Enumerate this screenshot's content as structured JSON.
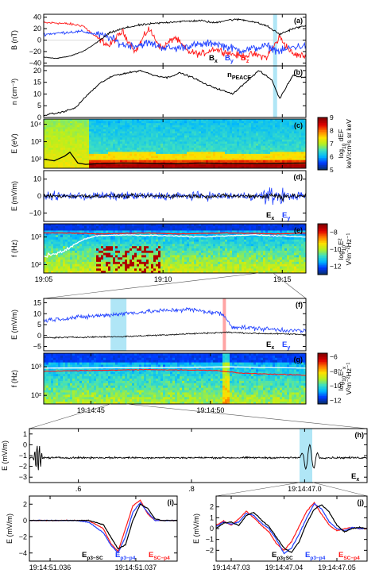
{
  "colors": {
    "black": "#000000",
    "blue": "#1f3fff",
    "red": "#ff1a1a",
    "white": "#ffffff",
    "highlight_cyan": "#8fdcf2",
    "highlight_red": "#ff9a9a",
    "colormap": [
      "#08306b",
      "#0038ff",
      "#00b7ff",
      "#3fe0c0",
      "#b6f020",
      "#ffe000",
      "#ff7a00",
      "#e00000",
      "#8a0000"
    ]
  },
  "chart_data": [
    {
      "id": "a",
      "type": "line",
      "panel_label": "(a)",
      "ylabel": "B (nT)",
      "ylim": [
        -45,
        45
      ],
      "yticks": [
        "40",
        "20",
        "0",
        "−20",
        "−40"
      ],
      "ytick_values": [
        40,
        20,
        0,
        -20,
        -40
      ],
      "xlim": [
        "19:05",
        "19:16"
      ],
      "highlight": [
        "19:14:45",
        "19:14:47"
      ],
      "series": [
        {
          "name": "Bx",
          "label_main": "B",
          "label_sub": "x",
          "color": "#000000",
          "x": [
            0,
            0.05,
            0.1,
            0.15,
            0.2,
            0.25,
            0.3,
            0.35,
            0.4,
            0.45,
            0.5,
            0.55,
            0.6,
            0.65,
            0.7,
            0.75,
            0.8,
            0.85,
            0.9,
            0.95,
            1
          ],
          "y": [
            -30,
            -32,
            -28,
            -20,
            -5,
            12,
            20,
            25,
            28,
            30,
            32,
            33,
            34,
            30,
            35,
            36,
            32,
            25,
            10,
            20,
            25
          ]
        },
        {
          "name": "By",
          "label_main": "B",
          "label_sub": "y",
          "color": "#1f3fff",
          "x": [
            0,
            0.05,
            0.1,
            0.15,
            0.2,
            0.25,
            0.3,
            0.35,
            0.4,
            0.45,
            0.5,
            0.55,
            0.6,
            0.65,
            0.7,
            0.75,
            0.8,
            0.85,
            0.9,
            0.95,
            1
          ],
          "y": [
            10,
            12,
            14,
            15,
            10,
            5,
            -8,
            -10,
            -5,
            -12,
            -15,
            -10,
            -8,
            -5,
            -12,
            -18,
            -15,
            -10,
            -20,
            -12,
            -10
          ]
        },
        {
          "name": "Bz",
          "label_main": "B",
          "label_sub": "z",
          "color": "#ff1a1a",
          "x": [
            0,
            0.05,
            0.1,
            0.15,
            0.2,
            0.25,
            0.3,
            0.35,
            0.4,
            0.45,
            0.5,
            0.55,
            0.6,
            0.65,
            0.7,
            0.75,
            0.8,
            0.85,
            0.9,
            0.95,
            1
          ],
          "y": [
            30,
            30,
            28,
            25,
            5,
            -10,
            15,
            -20,
            20,
            -15,
            5,
            -20,
            -25,
            -15,
            -22,
            -28,
            -25,
            -30,
            5,
            -25,
            -28
          ]
        }
      ]
    },
    {
      "id": "b",
      "type": "line",
      "panel_label": "(b)",
      "ylabel": "n (cm⁻³)",
      "ylim": [
        0,
        22
      ],
      "yticks": [
        "20",
        "15",
        "10",
        "5",
        "0"
      ],
      "ytick_values": [
        20,
        15,
        10,
        5,
        0
      ],
      "xlim": [
        "19:05",
        "19:16"
      ],
      "highlight": [
        "19:14:45",
        "19:14:47"
      ],
      "annotation_main": "n",
      "annotation_sub": "PEACE",
      "series": [
        {
          "name": "nPEACE",
          "color": "#000000",
          "x": [
            0,
            0.06,
            0.12,
            0.17,
            0.22,
            0.27,
            0.32,
            0.37,
            0.42,
            0.47,
            0.52,
            0.57,
            0.62,
            0.67,
            0.72,
            0.77,
            0.82,
            0.87,
            0.9,
            0.95,
            1
          ],
          "y": [
            1,
            2,
            4,
            10,
            15,
            18,
            19,
            20,
            18,
            17,
            19,
            17,
            14,
            12,
            10,
            15,
            20,
            16,
            8,
            18,
            17
          ]
        }
      ]
    },
    {
      "id": "c",
      "type": "heatmap",
      "panel_label": "(c)",
      "ylabel": "E (eV)",
      "yscale": "log",
      "ylim": [
        30,
        20000
      ],
      "yticks": [
        "10⁴",
        "10³",
        "10²"
      ],
      "xlim": [
        "19:05",
        "19:16"
      ],
      "colorbar": {
        "label_main": "log",
        "label_sub": "10",
        "label_rest": " dEF",
        "units": "keV/cm²s sr keV",
        "ticks": [
          "9",
          "8",
          "7",
          "6",
          "5"
        ],
        "range": [
          5,
          9
        ]
      },
      "overlay_line": {
        "color": "#000000",
        "x": [
          0,
          0.04,
          0.08,
          0.1,
          0.13,
          0.16,
          0.2,
          0.3,
          0.4,
          0.5,
          0.6,
          0.7,
          0.8,
          0.9,
          1
        ],
        "y": [
          100,
          80,
          150,
          250,
          60,
          50,
          55,
          60,
          58,
          55,
          60,
          57,
          56,
          58,
          60
        ]
      }
    },
    {
      "id": "d",
      "type": "line",
      "panel_label": "(d)",
      "ylabel": "E (mV/m)",
      "ylim": [
        -15,
        15
      ],
      "yticks": [
        "10",
        "0",
        "−10"
      ],
      "ytick_values": [
        10,
        0,
        -10
      ],
      "xlim": [
        "19:05",
        "19:16"
      ],
      "series": [
        {
          "name": "Ex",
          "label_main": "E",
          "label_sub": "x",
          "color": "#000000"
        },
        {
          "name": "Ey",
          "label_main": "E",
          "label_sub": "y",
          "color": "#1f3fff"
        }
      ]
    },
    {
      "id": "e",
      "type": "heatmap",
      "panel_label": "(e)",
      "ylabel": "f (Hz)",
      "yscale": "log",
      "ylim": [
        50,
        3000
      ],
      "yticks": [
        "10³",
        "10²"
      ],
      "xlim": [
        "19:05",
        "19:16"
      ],
      "xticks": [
        "19:05",
        "19:10",
        "19:15"
      ],
      "colorbar": {
        "label_main": "log",
        "label_sub": "10",
        "label_rest": "E²",
        "units": "V²m⁻²Hz⁻¹",
        "ticks": [
          "−8",
          "−10",
          "−12"
        ],
        "range": [
          -13,
          -7
        ]
      },
      "overlay_lines": [
        {
          "color": "#ff1a1a",
          "x": [
            0,
            0.1,
            0.2,
            0.3,
            0.4,
            0.5,
            0.6,
            0.7,
            0.8,
            0.9,
            1
          ],
          "y": [
            1400,
            1400,
            1300,
            1350,
            1400,
            1300,
            1350,
            1400,
            1350,
            1300,
            1400
          ]
        },
        {
          "color": "#ffffff",
          "x": [
            0,
            0.05,
            0.1,
            0.15,
            0.2,
            0.3,
            0.4,
            0.5,
            0.6,
            0.7,
            0.8,
            0.9,
            1
          ],
          "y": [
            200,
            250,
            400,
            800,
            1100,
            1200,
            1150,
            1100,
            1000,
            1100,
            1200,
            1100,
            1000
          ]
        }
      ]
    },
    {
      "id": "f",
      "type": "line",
      "panel_label": "(f)",
      "ylabel": "E (mV/m)",
      "ylim": [
        -7,
        17
      ],
      "yticks": [
        "15",
        "10",
        "5",
        "0",
        "−5"
      ],
      "ytick_values": [
        15,
        10,
        5,
        0,
        -5
      ],
      "xlim": [
        "19:14:43",
        "19:14:54"
      ],
      "highlight_cyan": [
        "19:14:46.5",
        "19:14:47.1"
      ],
      "highlight_red": [
        "19:14:51.0",
        "19:14:51.1"
      ],
      "series": [
        {
          "name": "Ex",
          "label_main": "E",
          "label_sub": "x",
          "color": "#000000"
        },
        {
          "name": "Ey",
          "label_main": "E",
          "label_sub": "y",
          "color": "#1f3fff"
        }
      ]
    },
    {
      "id": "g",
      "type": "heatmap",
      "panel_label": "(g)",
      "ylabel": "f (Hz)",
      "yscale": "log",
      "ylim": [
        50,
        3000
      ],
      "yticks": [
        "10³",
        "10²"
      ],
      "xlim": [
        "19:14:43",
        "19:14:54"
      ],
      "xticks": [
        "19:14:45",
        "19:14:50"
      ],
      "colorbar": {
        "label_main": "log",
        "label_sub": "10",
        "label_rest": "E²",
        "label_x": "x",
        "units": "V²m⁻²Hz⁻¹",
        "ticks": [
          "−6",
          "−8",
          "−10",
          "−12"
        ],
        "range": [
          -12.5,
          -5.5
        ]
      }
    },
    {
      "id": "h",
      "type": "line",
      "panel_label": "(h)",
      "ylabel": "E (mV/m)",
      "ylim": [
        -3.5,
        1.5
      ],
      "yticks": [
        "1",
        "0",
        "−1",
        "−2",
        "−3"
      ],
      "ytick_values": [
        1,
        0,
        -1,
        -2,
        -3
      ],
      "xlim": [
        "19:14:46.5",
        "19:14:47.1"
      ],
      "xticks": [
        ".6",
        ".8",
        "19:14:47.0"
      ],
      "highlight": [
        "19:14:47.02",
        "19:14:47.06"
      ],
      "series": [
        {
          "name": "Ex",
          "label_main": "E",
          "label_sub": "x",
          "color": "#000000"
        }
      ]
    },
    {
      "id": "i",
      "type": "line",
      "panel_label": "(i)",
      "ylabel": "E (mV/m)",
      "ylim": [
        -5,
        3
      ],
      "yticks": [
        "2",
        "0",
        "−2",
        "−4"
      ],
      "ytick_values": [
        2,
        0,
        -2,
        -4
      ],
      "xticks": [
        "19:14:51.036",
        "19:14:51.037"
      ],
      "series": [
        {
          "name": "Ep3-SC",
          "label_main": "E",
          "label_sub": "p3−SC",
          "color": "#000000",
          "x": [
            0,
            0.1,
            0.2,
            0.3,
            0.4,
            0.5,
            0.55,
            0.6,
            0.65,
            0.7,
            0.75,
            0.8,
            0.85,
            0.9,
            1
          ],
          "y": [
            0,
            0,
            0,
            0,
            0,
            -0.5,
            -2,
            -3.5,
            -3,
            0,
            2,
            1.5,
            0.2,
            0,
            0
          ]
        },
        {
          "name": "Ep3-p4",
          "label_main": "E",
          "label_sub": "p3−p4",
          "color": "#1f3fff",
          "x": [
            0,
            0.1,
            0.2,
            0.3,
            0.4,
            0.5,
            0.55,
            0.6,
            0.65,
            0.7,
            0.75,
            0.8,
            0.85,
            0.9,
            1
          ],
          "y": [
            0,
            0,
            0,
            0,
            -0.2,
            -1.5,
            -3,
            -4,
            -2,
            1,
            2.2,
            1,
            0,
            0,
            0
          ]
        },
        {
          "name": "ESC-p4",
          "label_main": "E",
          "label_sub": "SC−p4",
          "color": "#ff1a1a",
          "x": [
            0,
            0.1,
            0.2,
            0.3,
            0.4,
            0.5,
            0.55,
            0.6,
            0.65,
            0.7,
            0.75,
            0.8,
            0.85,
            0.9,
            1
          ],
          "y": [
            0,
            0,
            0,
            0,
            0,
            -1,
            -2.8,
            -3.8,
            -1,
            1.8,
            2.5,
            0.8,
            0,
            0,
            0
          ]
        }
      ]
    },
    {
      "id": "j",
      "type": "line",
      "panel_label": "(j)",
      "ylabel": "E (mV/m)",
      "ylim": [
        -3,
        3
      ],
      "yticks": [
        "2",
        "1",
        "0",
        "−1",
        "−2"
      ],
      "ytick_values": [
        2,
        1,
        0,
        -1,
        -2
      ],
      "xticks": [
        "19:14:47.03",
        "19:14:47.04",
        "19:14:47.05"
      ],
      "series": [
        {
          "name": "Ep3-SC",
          "label_main": "E",
          "label_sub": "p3−SC",
          "color": "#000000",
          "x": [
            0,
            0.05,
            0.1,
            0.15,
            0.2,
            0.25,
            0.3,
            0.35,
            0.4,
            0.45,
            0.5,
            0.55,
            0.6,
            0.65,
            0.7,
            0.75,
            0.8,
            0.85,
            0.9,
            0.95,
            1
          ],
          "y": [
            0,
            0.5,
            0.6,
            0.3,
            1.2,
            1.5,
            0.8,
            0.2,
            -0.8,
            -1.8,
            -2.2,
            -1.2,
            0.5,
            1.8,
            2.2,
            1.5,
            0.3,
            -0.3,
            0,
            0.1,
            0
          ]
        },
        {
          "name": "Ep3-p4",
          "label_main": "E",
          "label_sub": "p3−p4",
          "color": "#1f3fff",
          "x": [
            0,
            0.05,
            0.1,
            0.15,
            0.2,
            0.25,
            0.3,
            0.35,
            0.4,
            0.45,
            0.5,
            0.55,
            0.6,
            0.65,
            0.7,
            0.75,
            0.8,
            0.85,
            0.9,
            0.95,
            1
          ],
          "y": [
            0.2,
            0.6,
            0.4,
            0.6,
            1.4,
            1.2,
            0.5,
            0,
            -1,
            -2.3,
            -1.8,
            -0.5,
            1,
            2.3,
            1.8,
            0.6,
            0,
            -0.2,
            0.1,
            0,
            0
          ]
        },
        {
          "name": "ESC-p4",
          "label_main": "E",
          "label_sub": "SC−p4",
          "color": "#ff1a1a",
          "x": [
            0,
            0.05,
            0.1,
            0.15,
            0.2,
            0.25,
            0.3,
            0.35,
            0.4,
            0.45,
            0.5,
            0.55,
            0.6,
            0.65,
            0.7,
            0.75,
            0.8,
            0.85,
            0.9,
            0.95,
            1
          ],
          "y": [
            0.3,
            0.7,
            0.3,
            0.9,
            1.6,
            1.0,
            0.3,
            -0.3,
            -1.4,
            -2.0,
            -1.2,
            0.2,
            1.6,
            2.4,
            1.3,
            0.3,
            -0.2,
            0,
            0.1,
            0,
            0
          ]
        }
      ]
    }
  ]
}
